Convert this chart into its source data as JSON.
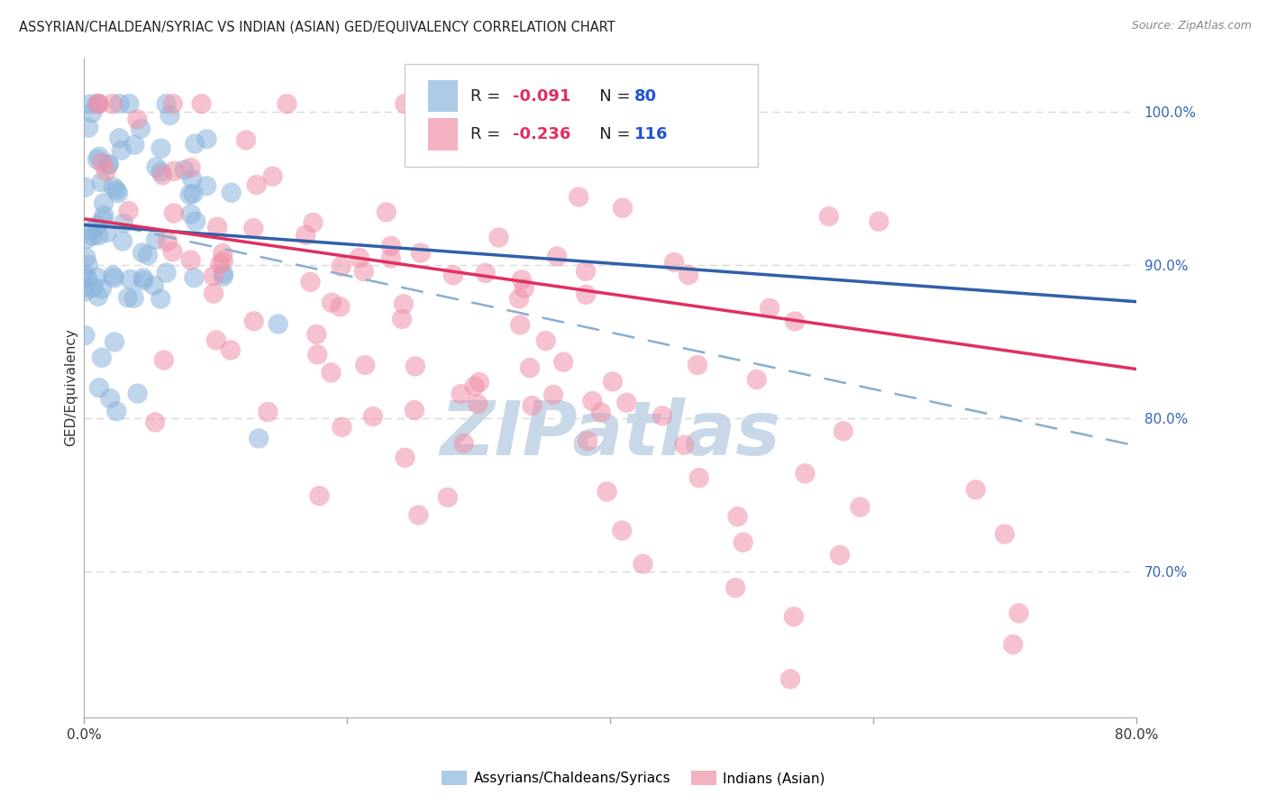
{
  "title": "ASSYRIAN/CHALDEAN/SYRIAC VS INDIAN (ASIAN) GED/EQUIVALENCY CORRELATION CHART",
  "source": "Source: ZipAtlas.com",
  "ylabel": "GED/Equivalency",
  "ytick_labels": [
    "100.0%",
    "90.0%",
    "80.0%",
    "70.0%"
  ],
  "ytick_values": [
    1.0,
    0.9,
    0.8,
    0.7
  ],
  "xlim": [
    0.0,
    0.8
  ],
  "ylim": [
    0.605,
    1.035
  ],
  "blue_color": "#8ab4dc",
  "pink_color": "#f090a8",
  "blue_line_color": "#3060a8",
  "pink_line_color": "#e03060",
  "blue_dash_color": "#88aed0",
  "watermark_color": "#c8d8e8",
  "grid_color": "#d8d8d8",
  "background_color": "#ffffff",
  "legend_r1": "-0.091",
  "legend_n1": "80",
  "legend_r2": "-0.236",
  "legend_n2": "116",
  "r_color": "#e03060",
  "n_color": "#2255cc",
  "blue_line_x0": 0.0,
  "blue_line_x1": 0.8,
  "blue_line_y0": 0.926,
  "blue_line_y1": 0.876,
  "pink_line_x0": 0.0,
  "pink_line_x1": 0.8,
  "pink_line_y0": 0.93,
  "pink_line_y1": 0.832,
  "dash_line_x0": 0.0,
  "dash_line_x1": 0.8,
  "dash_line_y0": 0.93,
  "dash_line_y1": 0.782
}
